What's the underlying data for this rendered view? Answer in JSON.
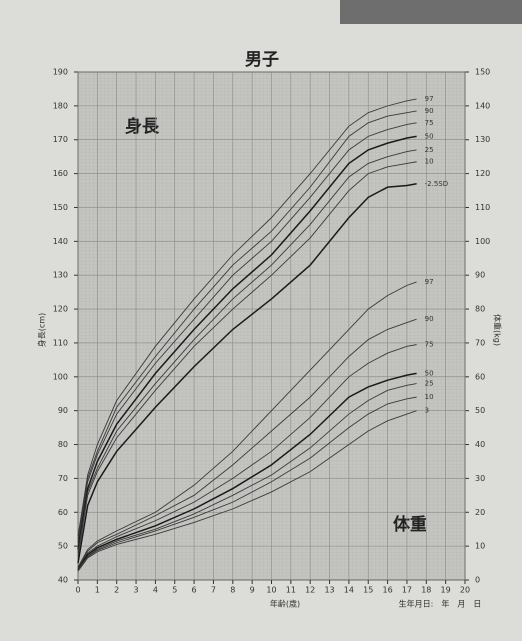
{
  "chart_data": {
    "type": "line",
    "title": "男子",
    "annotations": [
      "身長",
      "体重"
    ],
    "ylabel": "身長(cm)",
    "y2label": "体重(kg)",
    "xlabel": "年齢(歳)",
    "note": "生年月日:　年　月　日",
    "x": [
      0,
      0.5,
      1,
      2,
      4,
      6,
      8,
      10,
      12,
      14,
      15,
      16,
      17,
      17.5
    ],
    "xlim": [
      0,
      20
    ],
    "xticks": [
      0,
      1,
      2,
      3,
      4,
      5,
      6,
      7,
      8,
      9,
      10,
      11,
      12,
      13,
      14,
      15,
      16,
      17,
      18,
      19,
      20
    ],
    "ylim": [
      40,
      190
    ],
    "yticks": [
      40,
      50,
      60,
      70,
      80,
      90,
      100,
      110,
      120,
      130,
      140,
      150,
      160,
      170,
      180,
      190
    ],
    "y2lim": [
      0,
      150
    ],
    "y2ticks": [
      0,
      10,
      20,
      30,
      40,
      50,
      60,
      70,
      80,
      90,
      100,
      110,
      120,
      130,
      140,
      150
    ],
    "grid": true,
    "series": [
      {
        "name": "97",
        "color": "#3a3a3a",
        "values": [
          53,
          71,
          80,
          93,
          109,
          123,
          136,
          147,
          160,
          174,
          178,
          180,
          181.5,
          182
        ]
      },
      {
        "name": "90",
        "color": "#3a3a3a",
        "values": [
          52,
          70,
          78,
          91,
          106,
          120,
          133,
          143,
          156,
          171,
          175,
          177,
          178,
          178.5
        ]
      },
      {
        "name": "75",
        "color": "#3a3a3a",
        "values": [
          51,
          69,
          77,
          89,
          104,
          117,
          130,
          140,
          153,
          167,
          171,
          173,
          174.5,
          175
        ]
      },
      {
        "name": "50",
        "color": "#1a1a1a",
        "values": [
          49,
          67,
          75,
          86,
          101,
          114,
          126,
          136,
          149,
          163,
          167,
          169,
          170.5,
          171
        ]
      },
      {
        "name": "25",
        "color": "#3a3a3a",
        "values": [
          48,
          66,
          73,
          84,
          98,
          111,
          123,
          133,
          145,
          159,
          163,
          165,
          166.5,
          167
        ]
      },
      {
        "name": "10",
        "color": "#3a3a3a",
        "values": [
          47,
          65,
          72,
          82,
          96,
          109,
          120,
          130,
          141,
          155,
          160,
          162,
          163,
          163.5
        ]
      },
      {
        "name": "-2.5SD",
        "color": "#1a1a1a",
        "values": [
          45,
          62,
          69,
          78,
          91,
          103,
          114,
          123,
          133,
          147,
          153,
          156,
          156.5,
          157
        ]
      },
      {
        "name": "97",
        "color": "#3a3a3a",
        "axis": "y2",
        "values": [
          3.8,
          9,
          11.5,
          14.5,
          20,
          28,
          38,
          50,
          62,
          74,
          80,
          84,
          87,
          88
        ]
      },
      {
        "name": "90",
        "color": "#3a3a3a",
        "axis": "y2",
        "values": [
          3.6,
          8.5,
          11,
          13.5,
          19,
          25,
          34,
          44,
          54,
          66,
          71,
          74,
          76,
          77
        ]
      },
      {
        "name": "75",
        "color": "#3a3a3a",
        "axis": "y2",
        "values": [
          3.4,
          8,
          10,
          12.8,
          17.5,
          23,
          30,
          38,
          48,
          60,
          64,
          67,
          69,
          69.5
        ]
      },
      {
        "name": "50",
        "color": "#1a1a1a",
        "axis": "y2",
        "values": [
          3,
          7.5,
          9.5,
          12,
          16,
          21,
          27,
          34,
          43,
          54,
          57,
          59,
          60.5,
          61
        ]
      },
      {
        "name": "25",
        "color": "#3a3a3a",
        "axis": "y2",
        "values": [
          3,
          7,
          9,
          11.5,
          15,
          19.5,
          25,
          31,
          39,
          49,
          53,
          56,
          57.5,
          58
        ]
      },
      {
        "name": "10",
        "color": "#3a3a3a",
        "axis": "y2",
        "values": [
          2.8,
          6.8,
          8.7,
          11,
          14.5,
          18.5,
          23,
          29,
          36,
          45,
          49,
          52,
          53.5,
          54
        ]
      },
      {
        "name": "3",
        "color": "#3a3a3a",
        "axis": "y2",
        "values": [
          2.6,
          6.5,
          8.3,
          10.5,
          13.5,
          17,
          21,
          26,
          32,
          40,
          44,
          47,
          49,
          50
        ]
      }
    ]
  }
}
